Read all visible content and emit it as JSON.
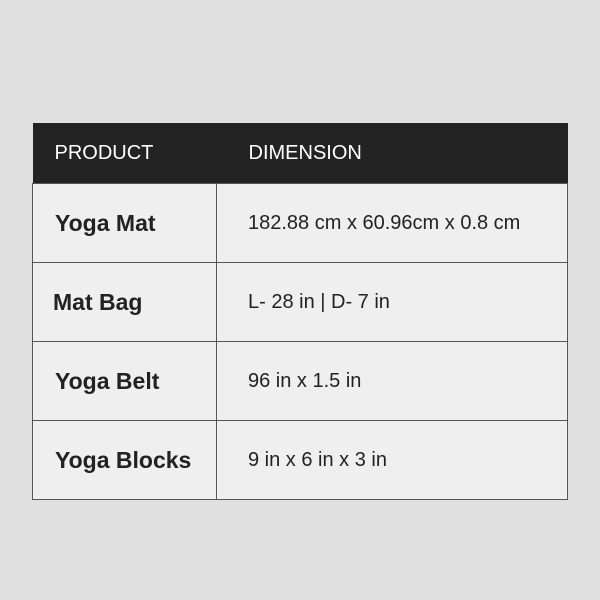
{
  "table": {
    "headers": [
      "PRODUCT",
      "DIMENSION"
    ],
    "rows": [
      {
        "product": "Yoga Mat",
        "dimension": "182.88 cm x 60.96cm x 0.8 cm"
      },
      {
        "product": "Mat Bag",
        "dimension": "L- 28 in | D- 7 in"
      },
      {
        "product": "Yoga Belt",
        "dimension": "96 in x 1.5 in"
      },
      {
        "product": "Yoga Blocks",
        "dimension": "9 in x 6 in x 3 in"
      }
    ]
  }
}
